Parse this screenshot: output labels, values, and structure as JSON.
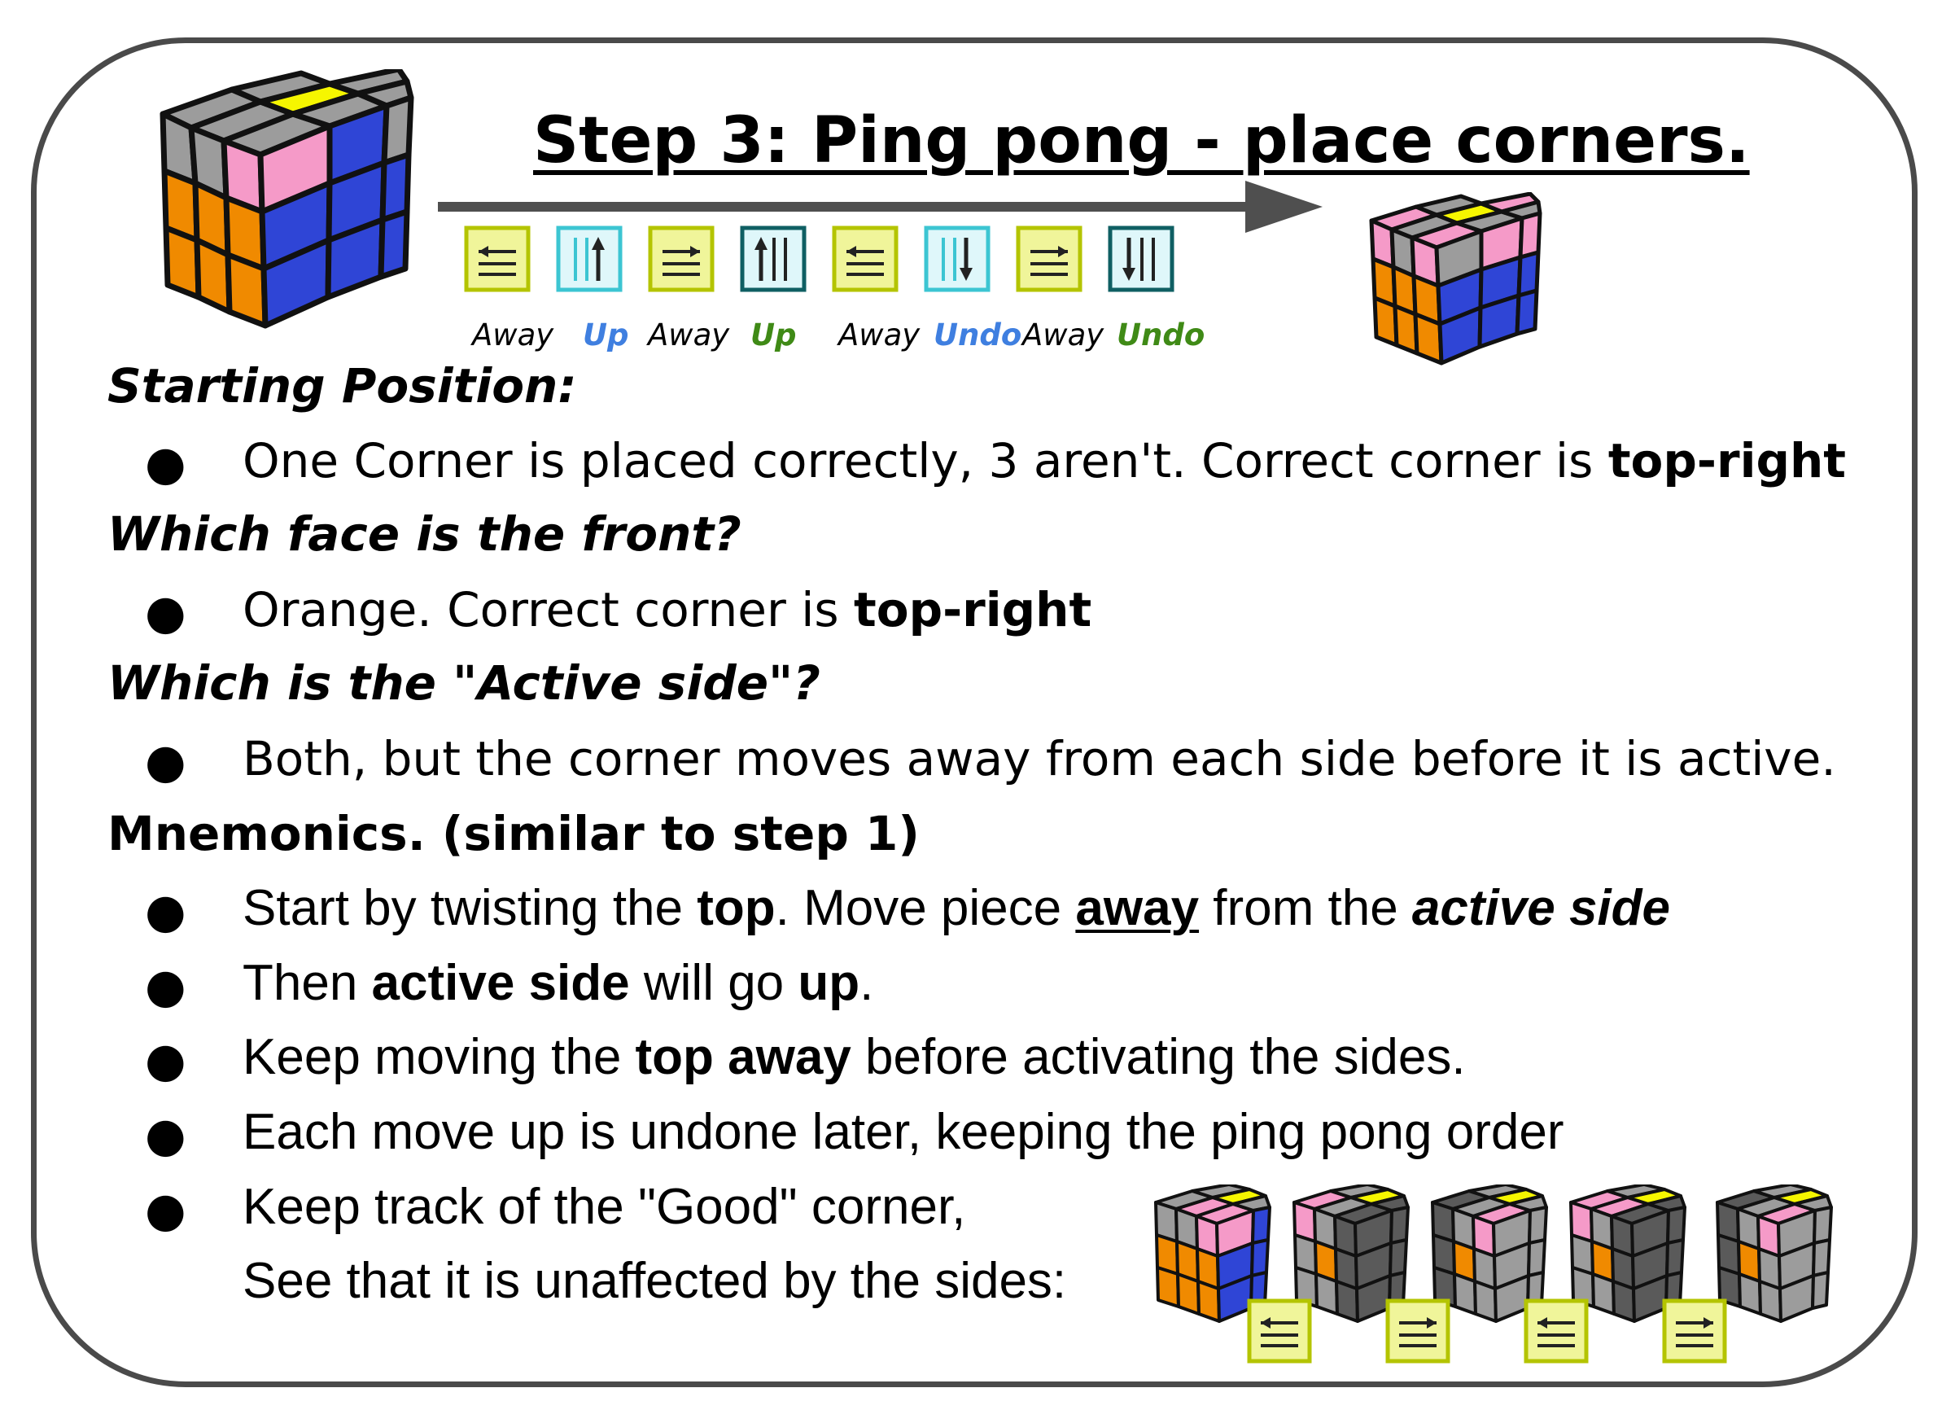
{
  "title": "Step 3: Ping pong - place corners.",
  "moves": [
    {
      "label": "Away",
      "style": "plain",
      "icon": "top-left-arrow-icon"
    },
    {
      "label": "Up",
      "style": "blue",
      "icon": "right-column-up-icon"
    },
    {
      "label": "Away",
      "style": "plain",
      "icon": "top-right-arrow-icon"
    },
    {
      "label": "Up",
      "style": "green",
      "icon": "left-column-up-icon"
    },
    {
      "label": "Away",
      "style": "plain",
      "icon": "top-left-arrow-icon"
    },
    {
      "label": "Undo",
      "style": "blue",
      "icon": "right-column-down-icon"
    },
    {
      "label": "Away",
      "style": "plain",
      "icon": "top-right-arrow-icon"
    },
    {
      "label": "Undo",
      "style": "green",
      "icon": "left-column-down-icon"
    }
  ],
  "sections": {
    "starting_position": {
      "heading": "Starting Position:",
      "bullet_text": "One Corner is placed correctly, 3 aren't. Correct corner is ",
      "bullet_bold": "top-right"
    },
    "front_face": {
      "heading": "Which face is the front?",
      "bullet_text": "Orange. Correct corner is ",
      "bullet_bold": "top-right"
    },
    "active_side": {
      "heading": "Which is the \"Active side\"?",
      "bullet_text": "Both, but the corner moves away from each side before it is active."
    },
    "mnemonics": {
      "heading": "Mnemonics. (similar to step 1)",
      "b1": {
        "t1": "Start by twisting the ",
        "b1": "top",
        "t2": ". Move piece ",
        "b2": "away",
        "t3": " from the ",
        "b3": "active side"
      },
      "b2": {
        "t1": "Then ",
        "b1": "active side",
        "t2": " will go ",
        "b2": "up",
        "t3": "."
      },
      "b3": {
        "t1": "Keep moving the ",
        "b1": "top away",
        "t2": " before activating the sides."
      },
      "b4": {
        "t1": "Each move up is undone later, keeping the ping pong order"
      },
      "b5": {
        "line1": "Keep track of the \"Good\" corner,",
        "line2": "See that it is unaffected by the sides:"
      }
    }
  },
  "bullet_symbol": "●",
  "colors": {
    "gray": "#9c9c9c",
    "dark_gray": "#5a5a5a",
    "yellow": "#f6f600",
    "pink": "#f59ac8",
    "orange": "#f08a00",
    "blue": "#2f45d6",
    "icon_yellow_bg": "#f0f59a",
    "icon_yellow_border": "#b4c400",
    "icon_cyan_bg": "#dff7fa",
    "icon_cyan_border": "#3cc5d2",
    "icon_teal_border": "#0f5f63",
    "frame": "#4a4a4a",
    "arrow": "#4f4f4f"
  }
}
